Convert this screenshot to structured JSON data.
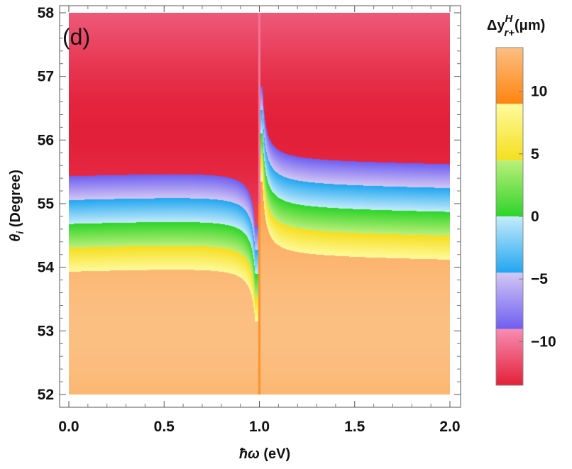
{
  "chart_data": {
    "type": "heatmap",
    "panel_label": "(d)",
    "xlabel": {
      "symbol": "ħω",
      "unit": " (eV)"
    },
    "ylabel": {
      "symbol": "θ",
      "subscript": "i",
      "unit": " (Degree)"
    },
    "xlim": [
      0.0,
      2.0
    ],
    "ylim": [
      52.0,
      58.0
    ],
    "x_ticks": [
      "0.0",
      "0.5",
      "1.0",
      "1.5",
      "2.0"
    ],
    "y_ticks": [
      "52",
      "53",
      "54",
      "55",
      "56",
      "57",
      "58"
    ],
    "colorbar": {
      "title": {
        "prefix": "Δy",
        "superscript": "H",
        "subscript": "r+",
        "unit": "(μm)"
      },
      "range": [
        -13.5,
        13.5
      ],
      "ticks": [
        "10",
        "5",
        "0",
        "−5",
        "−10"
      ],
      "tick_values": [
        10,
        5,
        0,
        -5,
        -10
      ],
      "bands": [
        {
          "from": -13.5,
          "to": -9,
          "color_low": "#e32039",
          "color_high": "#f78db2"
        },
        {
          "from": -9,
          "to": -4.5,
          "color_low": "#6e5ef0",
          "color_high": "#d3c7f5"
        },
        {
          "from": -4.5,
          "to": 0,
          "color_low": "#21a6f0",
          "color_high": "#c4ecfb"
        },
        {
          "from": 0,
          "to": 4.5,
          "color_low": "#2dd42a",
          "color_high": "#bdf07a"
        },
        {
          "from": 4.5,
          "to": 9,
          "color_low": "#f5de1e",
          "color_high": "#fffb9d"
        },
        {
          "from": 9,
          "to": 13.5,
          "color_low": "#ff8410",
          "color_high": "#fbbf82"
        }
      ]
    },
    "regions": [
      {
        "name": "upper-plateau",
        "theta_range": [
          55.3,
          58.0
        ],
        "value_min": -13.5,
        "value_max": -9.2
      },
      {
        "name": "transition-band",
        "theta_range": [
          53.9,
          55.6
        ],
        "value_min": -9,
        "value_max": 9,
        "center_theta_left": 54.7,
        "center_theta_right": 54.9
      },
      {
        "name": "lower-plateau",
        "theta_range": [
          52.0,
          54.3
        ],
        "value_min": 9.2,
        "value_max": 13.5
      }
    ],
    "resonance_x": 1.0
  }
}
